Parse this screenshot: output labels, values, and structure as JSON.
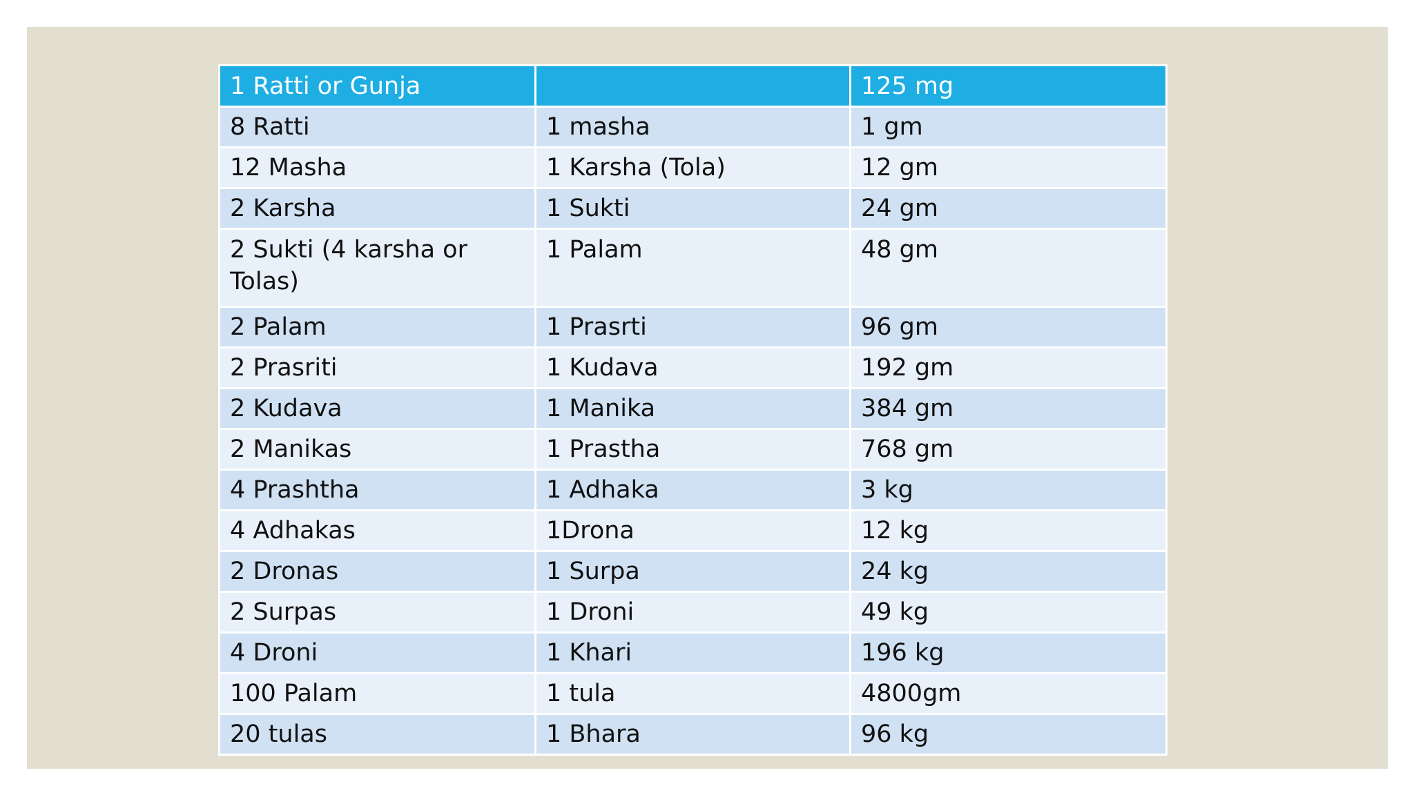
{
  "table": {
    "header": [
      "1 Ratti or Gunja",
      "",
      "125 mg"
    ],
    "rows": [
      [
        "8 Ratti",
        "1 masha",
        "1 gm"
      ],
      [
        "12 Masha",
        "1 Karsha (Tola)",
        "12 gm"
      ],
      [
        "2 Karsha",
        "1 Sukti",
        "24 gm"
      ],
      [
        "2 Sukti (4 karsha or Tolas)",
        "1 Palam",
        "48 gm"
      ],
      [
        "2 Palam",
        "1 Prasrti",
        "96 gm"
      ],
      [
        "2 Prasriti",
        "1 Kudava",
        "192 gm"
      ],
      [
        "2 Kudava",
        "1 Manika",
        "384 gm"
      ],
      [
        "2 Manikas",
        "1 Prastha",
        "768 gm"
      ],
      [
        "4 Prashtha",
        "1 Adhaka",
        "3 kg"
      ],
      [
        "4 Adhakas",
        "1Drona",
        "12 kg"
      ],
      [
        "2 Dronas",
        "1 Surpa",
        "24 kg"
      ],
      [
        "2 Surpas",
        "1 Droni",
        "49 kg"
      ],
      [
        "4 Droni",
        "1 Khari",
        "196 kg"
      ],
      [
        "100 Palam",
        "1 tula",
        "4800gm"
      ],
      [
        "20 tulas",
        "1 Bhara",
        "96 kg"
      ]
    ]
  },
  "colors": {
    "header_bg": "#1eaee3",
    "row_band_dark": "#cfe1f3",
    "row_band_light": "#e8f0f9",
    "slide_bg": "#e2ded0"
  }
}
